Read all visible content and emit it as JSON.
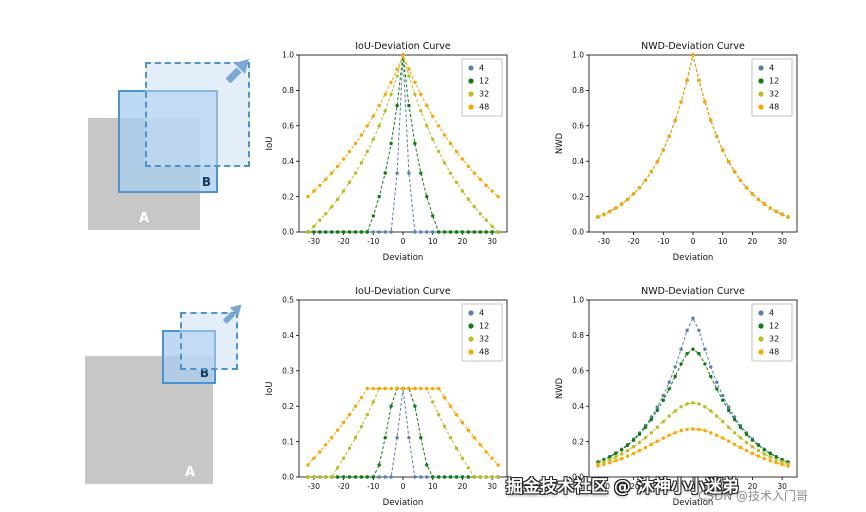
{
  "watermark": {
    "primary": "掘金技术社区 @ 沐神小小迷弟",
    "secondary": "CSDN @技术入门哥"
  },
  "diagrams": {
    "top": {
      "label_a": "A",
      "label_b": "B"
    },
    "bottom": {
      "label_a": "A",
      "label_b": "B"
    }
  },
  "colors": {
    "box_gray": "#c7c7c7",
    "box_blue_border": "#4f93ce",
    "box_blue_fill": "rgba(167,205,237,0.75)",
    "dashed_fill": "rgba(199,222,243,0.5)",
    "arrow": "#7ca6d4"
  },
  "chart_data": [
    {
      "type": "line",
      "title": "IoU-Deviation Curve",
      "xlabel": "Deviation",
      "ylabel": "IoU",
      "xlim": [
        -35,
        35
      ],
      "ylim": [
        0,
        1
      ],
      "xticks": [
        -30,
        -20,
        -10,
        0,
        10,
        20,
        30
      ],
      "yticks": [
        0,
        0.2,
        0.4,
        0.6,
        0.8,
        1.0
      ],
      "legend_position": "upper right",
      "x": [
        -32,
        -30,
        -28,
        -26,
        -24,
        -22,
        -20,
        -18,
        -16,
        -14,
        -12,
        -10,
        -8,
        -6,
        -4,
        -2,
        0,
        2,
        4,
        6,
        8,
        10,
        12,
        14,
        16,
        18,
        20,
        22,
        24,
        26,
        28,
        30,
        32
      ],
      "series": [
        {
          "name": "4",
          "color": "#5b7fb5",
          "values": [
            0,
            0,
            0,
            0,
            0,
            0,
            0,
            0,
            0,
            0,
            0,
            0,
            0,
            0,
            0,
            0.333,
            1,
            0.333,
            0,
            0,
            0,
            0,
            0,
            0,
            0,
            0,
            0,
            0,
            0,
            0,
            0,
            0,
            0
          ]
        },
        {
          "name": "12",
          "color": "#0f7d0f",
          "values": [
            0,
            0,
            0,
            0,
            0,
            0,
            0,
            0,
            0,
            0,
            0,
            0.091,
            0.2,
            0.333,
            0.5,
            0.714,
            1,
            0.714,
            0.5,
            0.333,
            0.2,
            0.091,
            0,
            0,
            0,
            0,
            0,
            0,
            0,
            0,
            0,
            0,
            0
          ]
        },
        {
          "name": "32",
          "color": "#bcbd22",
          "values": [
            0,
            0.032,
            0.067,
            0.103,
            0.143,
            0.185,
            0.231,
            0.28,
            0.333,
            0.391,
            0.455,
            0.524,
            0.6,
            0.684,
            0.778,
            0.882,
            1,
            0.882,
            0.778,
            0.684,
            0.6,
            0.524,
            0.455,
            0.391,
            0.333,
            0.28,
            0.231,
            0.185,
            0.143,
            0.103,
            0.067,
            0.032,
            0
          ]
        },
        {
          "name": "48",
          "color": "#ffa500",
          "values": [
            0.2,
            0.231,
            0.263,
            0.297,
            0.333,
            0.371,
            0.412,
            0.455,
            0.5,
            0.548,
            0.6,
            0.655,
            0.714,
            0.778,
            0.846,
            0.92,
            1,
            0.92,
            0.846,
            0.778,
            0.714,
            0.655,
            0.6,
            0.548,
            0.5,
            0.455,
            0.412,
            0.371,
            0.333,
            0.297,
            0.263,
            0.231,
            0.2
          ]
        }
      ]
    },
    {
      "type": "line",
      "title": "NWD-Deviation Curve",
      "xlabel": "Deviation",
      "ylabel": "NWD",
      "xlim": [
        -35,
        35
      ],
      "ylim": [
        0,
        1
      ],
      "xticks": [
        -30,
        -20,
        -10,
        0,
        10,
        20,
        30
      ],
      "yticks": [
        0,
        0.2,
        0.4,
        0.6,
        0.8,
        1.0
      ],
      "legend_position": "upper right",
      "x": [
        -32,
        -30,
        -28,
        -26,
        -24,
        -22,
        -20,
        -18,
        -16,
        -14,
        -12,
        -10,
        -8,
        -6,
        -4,
        -2,
        0,
        2,
        4,
        6,
        8,
        10,
        12,
        14,
        16,
        18,
        20,
        22,
        24,
        26,
        28,
        30,
        32
      ],
      "series": [
        {
          "name": "4",
          "color": "#5b7fb5",
          "values": [
            0.085,
            0.099,
            0.116,
            0.135,
            0.158,
            0.184,
            0.215,
            0.25,
            0.292,
            0.341,
            0.397,
            0.463,
            0.54,
            0.63,
            0.735,
            0.857,
            1,
            0.857,
            0.735,
            0.63,
            0.54,
            0.463,
            0.397,
            0.341,
            0.292,
            0.25,
            0.215,
            0.184,
            0.158,
            0.135,
            0.116,
            0.099,
            0.085
          ]
        },
        {
          "name": "12",
          "color": "#0f7d0f",
          "values": [
            0.085,
            0.099,
            0.116,
            0.135,
            0.158,
            0.184,
            0.215,
            0.25,
            0.292,
            0.341,
            0.397,
            0.463,
            0.54,
            0.63,
            0.735,
            0.857,
            1,
            0.857,
            0.735,
            0.63,
            0.54,
            0.463,
            0.397,
            0.341,
            0.292,
            0.25,
            0.215,
            0.184,
            0.158,
            0.135,
            0.116,
            0.099,
            0.085
          ]
        },
        {
          "name": "32",
          "color": "#bcbd22",
          "values": [
            0.085,
            0.099,
            0.116,
            0.135,
            0.158,
            0.184,
            0.215,
            0.25,
            0.292,
            0.341,
            0.397,
            0.463,
            0.54,
            0.63,
            0.735,
            0.857,
            1,
            0.857,
            0.735,
            0.63,
            0.54,
            0.463,
            0.397,
            0.341,
            0.292,
            0.25,
            0.215,
            0.184,
            0.158,
            0.135,
            0.116,
            0.099,
            0.085
          ]
        },
        {
          "name": "48",
          "color": "#ffa500",
          "values": [
            0.085,
            0.099,
            0.116,
            0.135,
            0.158,
            0.184,
            0.215,
            0.25,
            0.292,
            0.341,
            0.397,
            0.463,
            0.54,
            0.63,
            0.735,
            0.857,
            1,
            0.857,
            0.735,
            0.63,
            0.54,
            0.463,
            0.397,
            0.341,
            0.292,
            0.25,
            0.215,
            0.184,
            0.158,
            0.135,
            0.116,
            0.099,
            0.085
          ]
        }
      ]
    },
    {
      "type": "line",
      "title": "IoU-Deviation Curve",
      "xlabel": "Deviation",
      "ylabel": "IoU",
      "xlim": [
        -35,
        35
      ],
      "ylim": [
        0,
        0.5
      ],
      "xticks": [
        -30,
        -20,
        -10,
        0,
        10,
        20,
        30
      ],
      "yticks": [
        0,
        0.1,
        0.2,
        0.3,
        0.4,
        0.5
      ],
      "legend_position": "upper right",
      "x": [
        -32,
        -30,
        -28,
        -26,
        -24,
        -22,
        -20,
        -18,
        -16,
        -14,
        -12,
        -10,
        -8,
        -6,
        -4,
        -2,
        0,
        2,
        4,
        6,
        8,
        10,
        12,
        14,
        16,
        18,
        20,
        22,
        24,
        26,
        28,
        30,
        32
      ],
      "series": [
        {
          "name": "4",
          "color": "#5b7fb5",
          "values": [
            0,
            0,
            0,
            0,
            0,
            0,
            0,
            0,
            0,
            0,
            0,
            0,
            0,
            0,
            0,
            0.111,
            0.25,
            0.111,
            0,
            0,
            0,
            0,
            0,
            0,
            0,
            0,
            0,
            0,
            0,
            0,
            0,
            0,
            0
          ]
        },
        {
          "name": "12",
          "color": "#0f7d0f",
          "values": [
            0,
            0,
            0,
            0,
            0,
            0,
            0,
            0,
            0,
            0,
            0,
            0,
            0.034,
            0.111,
            0.2,
            0.25,
            0.25,
            0.25,
            0.2,
            0.111,
            0.034,
            0,
            0,
            0,
            0,
            0,
            0,
            0,
            0,
            0,
            0,
            0,
            0
          ]
        },
        {
          "name": "32",
          "color": "#bcbd22",
          "values": [
            0,
            0,
            0,
            0,
            0,
            0.026,
            0.053,
            0.081,
            0.111,
            0.143,
            0.176,
            0.212,
            0.25,
            0.25,
            0.25,
            0.25,
            0.25,
            0.25,
            0.25,
            0.25,
            0.25,
            0.212,
            0.176,
            0.143,
            0.111,
            0.081,
            0.053,
            0.026,
            0,
            0,
            0,
            0,
            0
          ]
        },
        {
          "name": "48",
          "color": "#ffa500",
          "values": [
            0.034,
            0.053,
            0.071,
            0.091,
            0.111,
            0.132,
            0.154,
            0.176,
            0.2,
            0.224,
            0.25,
            0.25,
            0.25,
            0.25,
            0.25,
            0.25,
            0.25,
            0.25,
            0.25,
            0.25,
            0.25,
            0.25,
            0.25,
            0.224,
            0.2,
            0.176,
            0.154,
            0.132,
            0.111,
            0.091,
            0.071,
            0.053,
            0.034
          ]
        }
      ]
    },
    {
      "type": "line",
      "title": "NWD-Deviation Curve",
      "xlabel": "Deviation",
      "ylabel": "NWD",
      "xlim": [
        -35,
        35
      ],
      "ylim": [
        0,
        1
      ],
      "xticks": [
        -30,
        -20,
        -10,
        0,
        10,
        20,
        30
      ],
      "yticks": [
        0,
        0.2,
        0.4,
        0.6,
        0.8,
        1.0
      ],
      "legend_position": "upper right",
      "x": [
        -32,
        -30,
        -28,
        -26,
        -24,
        -22,
        -20,
        -18,
        -16,
        -14,
        -12,
        -10,
        -8,
        -6,
        -4,
        -2,
        0,
        2,
        4,
        6,
        8,
        10,
        12,
        14,
        16,
        18,
        20,
        22,
        24,
        26,
        28,
        30,
        32
      ],
      "series": [
        {
          "name": "4",
          "color": "#5b7fb5",
          "values": [
            0.085,
            0.099,
            0.116,
            0.135,
            0.157,
            0.183,
            0.214,
            0.249,
            0.291,
            0.339,
            0.395,
            0.46,
            0.535,
            0.622,
            0.722,
            0.828,
            0.897,
            0.828,
            0.722,
            0.622,
            0.535,
            0.46,
            0.395,
            0.339,
            0.291,
            0.249,
            0.214,
            0.183,
            0.157,
            0.135,
            0.116,
            0.099,
            0.085
          ]
        },
        {
          "name": "12",
          "color": "#0f7d0f",
          "values": [
            0.084,
            0.097,
            0.113,
            0.132,
            0.153,
            0.179,
            0.208,
            0.241,
            0.28,
            0.325,
            0.376,
            0.434,
            0.498,
            0.568,
            0.639,
            0.697,
            0.722,
            0.697,
            0.639,
            0.568,
            0.498,
            0.434,
            0.376,
            0.325,
            0.28,
            0.241,
            0.208,
            0.179,
            0.153,
            0.132,
            0.113,
            0.097,
            0.084
          ]
        },
        {
          "name": "32",
          "color": "#bcbd22",
          "values": [
            0.074,
            0.085,
            0.098,
            0.113,
            0.13,
            0.149,
            0.171,
            0.195,
            0.222,
            0.25,
            0.281,
            0.313,
            0.344,
            0.373,
            0.397,
            0.413,
            0.419,
            0.413,
            0.397,
            0.373,
            0.344,
            0.313,
            0.281,
            0.25,
            0.222,
            0.195,
            0.171,
            0.149,
            0.13,
            0.113,
            0.098,
            0.085,
            0.074
          ]
        },
        {
          "name": "48",
          "color": "#ffa500",
          "values": [
            0.062,
            0.071,
            0.081,
            0.092,
            0.104,
            0.118,
            0.133,
            0.149,
            0.166,
            0.184,
            0.202,
            0.22,
            0.236,
            0.25,
            0.262,
            0.269,
            0.271,
            0.269,
            0.262,
            0.25,
            0.236,
            0.22,
            0.202,
            0.184,
            0.166,
            0.149,
            0.133,
            0.118,
            0.104,
            0.092,
            0.081,
            0.071,
            0.062
          ]
        }
      ]
    }
  ]
}
